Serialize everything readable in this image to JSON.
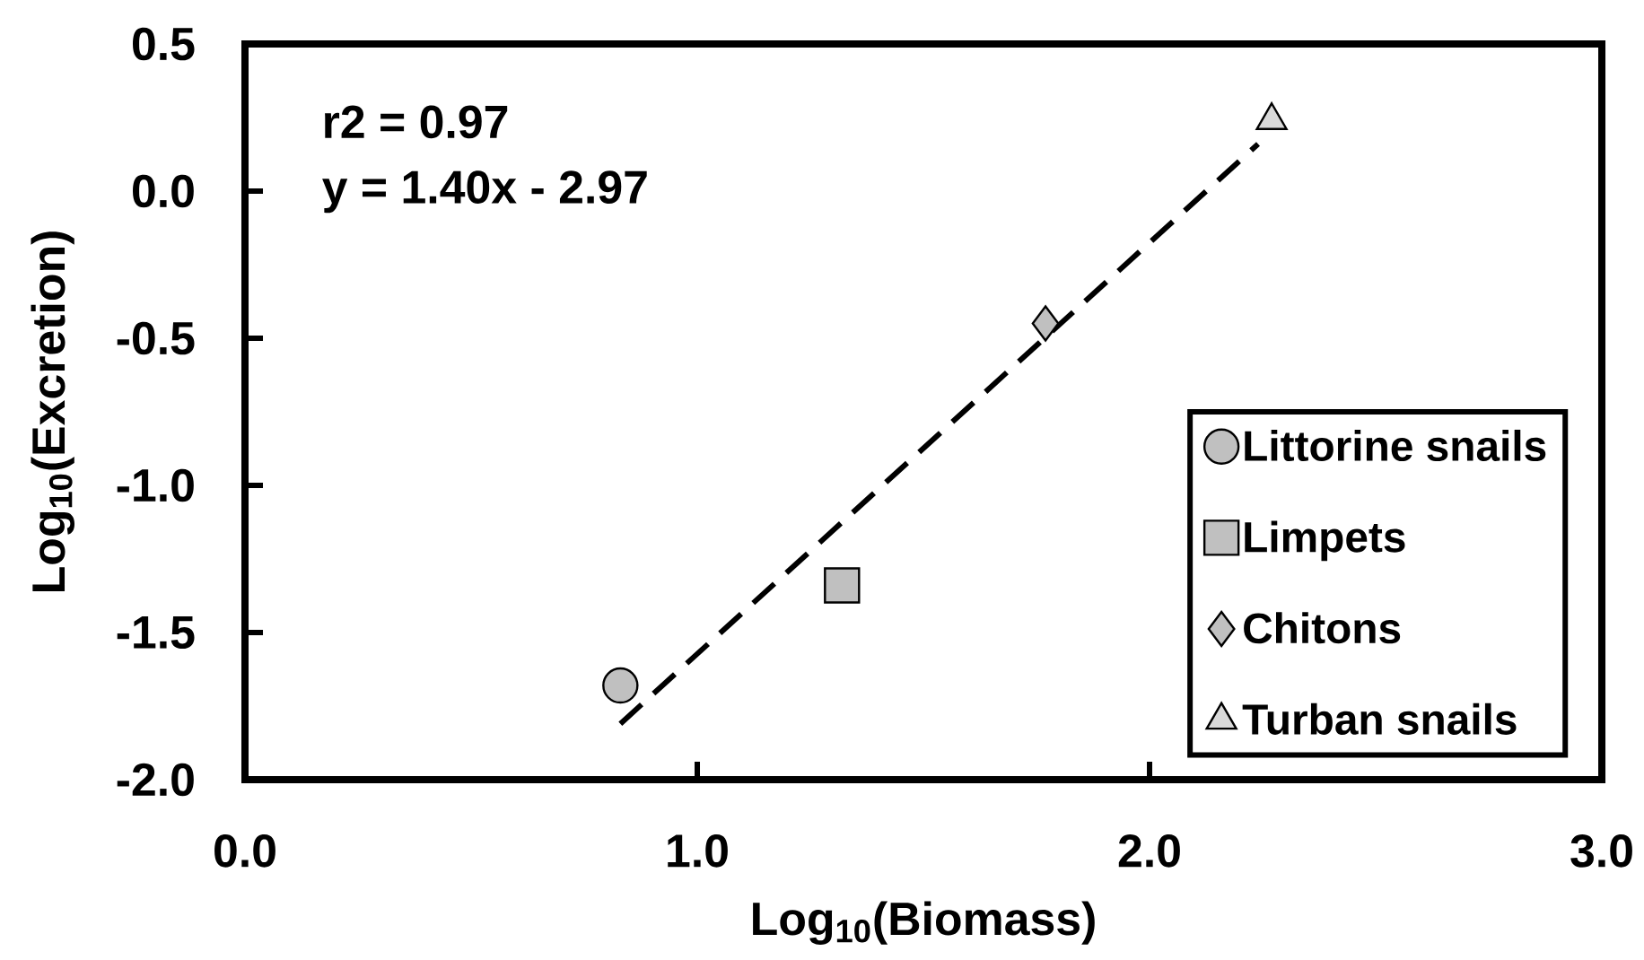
{
  "chart_data": {
    "type": "scatter",
    "xlabel": "Log$_{10}$(Biomass)",
    "ylabel": "Log$_{10}$(Excretion)",
    "xlim": [
      0,
      3
    ],
    "ylim": [
      -2,
      0.5
    ],
    "xticks": [
      {
        "value": 0,
        "label": "0.0"
      },
      {
        "value": 1,
        "label": "1.0"
      },
      {
        "value": 2,
        "label": "2.0"
      },
      {
        "value": 3,
        "label": "3.0"
      }
    ],
    "yticks": [
      {
        "value": -2,
        "label": "-2.0"
      },
      {
        "value": -1.5,
        "label": "-1.5"
      },
      {
        "value": -1,
        "label": "-1.0"
      },
      {
        "value": -0.5,
        "label": "-0.5"
      },
      {
        "value": 0,
        "label": "0.0"
      },
      {
        "value": 0.5,
        "label": "0.5"
      }
    ],
    "annotations": [
      "r2 = 0.97",
      "y = 1.40x - 2.97"
    ],
    "legend": "bottom right",
    "grid": false,
    "series": [
      {
        "name": "Littorine snails",
        "color": "#c0c0c0",
        "marker": "circle",
        "x": [
          0.83
        ],
        "values": [
          -1.68
        ]
      },
      {
        "name": "Limpets",
        "color": "#c0c0c0",
        "marker": "square",
        "x": [
          1.32
        ],
        "values": [
          -1.34
        ]
      },
      {
        "name": "Chitons",
        "color": "#c0c0c0",
        "marker": "diamond",
        "x": [
          1.77
        ],
        "values": [
          -0.45
        ]
      },
      {
        "name": "Turban snails",
        "color": "#d9d9d9",
        "marker": "triangle",
        "x": [
          2.27
        ],
        "values": [
          0.24
        ]
      },
      {
        "type": "line",
        "color": "#000000",
        "line_style": "dashed",
        "marker": "none",
        "x": [
          0.83,
          2.24
        ],
        "values": [
          -1.81,
          0.16
        ]
      }
    ]
  }
}
